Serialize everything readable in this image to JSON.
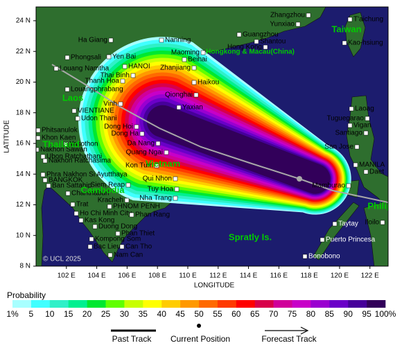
{
  "map": {
    "xlabel": "LONGITUDE",
    "ylabel": "LATITUDE",
    "xlim": [
      100,
      123.2
    ],
    "ylim": [
      8,
      24.9
    ],
    "xticks": [
      {
        "value": 102,
        "label": "102 E"
      },
      {
        "value": 104,
        "label": "104 E"
      },
      {
        "value": 106,
        "label": "106 E"
      },
      {
        "value": 108,
        "label": "108 E"
      },
      {
        "value": 110,
        "label": "110 E"
      },
      {
        "value": 112,
        "label": "112 E"
      },
      {
        "value": 114,
        "label": "114 E"
      },
      {
        "value": 116,
        "label": "116 E"
      },
      {
        "value": 118,
        "label": "118 E"
      },
      {
        "value": 120,
        "label": "120 E"
      },
      {
        "value": 122,
        "label": "122 E"
      }
    ],
    "yticks": [
      {
        "value": 8,
        "label": "8 N"
      },
      {
        "value": 10,
        "label": "10 N"
      },
      {
        "value": 12,
        "label": "12 N"
      },
      {
        "value": 14,
        "label": "14 N"
      },
      {
        "value": 16,
        "label": "16 N"
      },
      {
        "value": 18,
        "label": "18 N"
      },
      {
        "value": 20,
        "label": "20 N"
      },
      {
        "value": 22,
        "label": "22 N"
      },
      {
        "value": 24,
        "label": "24 N"
      }
    ],
    "places": [
      "Zhangzhou",
      "Yunxiao",
      "T'aichung",
      "Guangzhou",
      "Shantou",
      "Kao-hsiung",
      "Ha Giang",
      "Nanning",
      "Hong Kong",
      "Maoming",
      "Beihai",
      "Phongsali",
      "Yen Bai",
      "Louang Namtha",
      "HANOI",
      "Zhanjiang",
      "Thai Binh",
      "Thanh Hoa",
      "Haikou",
      "Louangphrabang",
      "Qionghai",
      "Vinh",
      "Yaxian",
      "VIENTIANE",
      "Udon Thani",
      "Dong Hoi",
      "Phitsanulok",
      "Dong Ha",
      "Khon Kaen",
      "Yasothon",
      "Da Nang",
      "Nakhon Sawan",
      "Quang Ngai",
      "Ubon Ratchathani",
      "Nakhon Ratchasima",
      "Kon Tum",
      "Phra Nakhon Si Ayutthaya",
      "BANGKOK",
      "Qui Nhon",
      "Ban Sattahip",
      "Siem Reap",
      "Chanthaburi",
      "Tuy Hoa",
      "Nha Trang",
      "Trat",
      "Kracheh",
      "PHNOM PENH",
      "Ho Chi Minh City",
      "Phan Rang",
      "Kas Kong",
      "Duong Dong",
      "Phan Thiet",
      "Kompong Som",
      "Bac Lieu",
      "Can Tho",
      "Nam Can",
      "Laoag",
      "Tuguegarao",
      "Vigan",
      "Santiago",
      "San Jose",
      "MANILA",
      "Daet",
      "Mamburao",
      "Iloilo",
      "Taytay",
      "Puerto Princesa",
      "Bonobono"
    ],
    "regions": [
      "Taiwan",
      "Hongkong & Macau(China)",
      "Laos",
      "Thailand",
      "Vietnam",
      "Cambodia",
      "Spratly Is.",
      "Philippines"
    ],
    "copyright": "© UCL 2025"
  },
  "legend": {
    "title": "Probability",
    "levels": [
      {
        "value": 1,
        "label": "1%"
      },
      5,
      10,
      15,
      20,
      25,
      30,
      35,
      40,
      45,
      50,
      55,
      60,
      65,
      70,
      75,
      80,
      85,
      90,
      95,
      {
        "value": 100,
        "label": "100%"
      }
    ],
    "colors": [
      "#a8ffff",
      "#40ffff",
      "#30f0c8",
      "#00f090",
      "#00e830",
      "#60ff00",
      "#c8ff00",
      "#ffff00",
      "#ffcc00",
      "#ff9900",
      "#ff6a00",
      "#ff3a00",
      "#ff0000",
      "#d8004a",
      "#d0009a",
      "#c800c8",
      "#9a00d0",
      "#6a00c8",
      "#46009a",
      "#32005a"
    ]
  },
  "track_legend": [
    "Past Track",
    "Current Position",
    "Forecast Track"
  ]
}
